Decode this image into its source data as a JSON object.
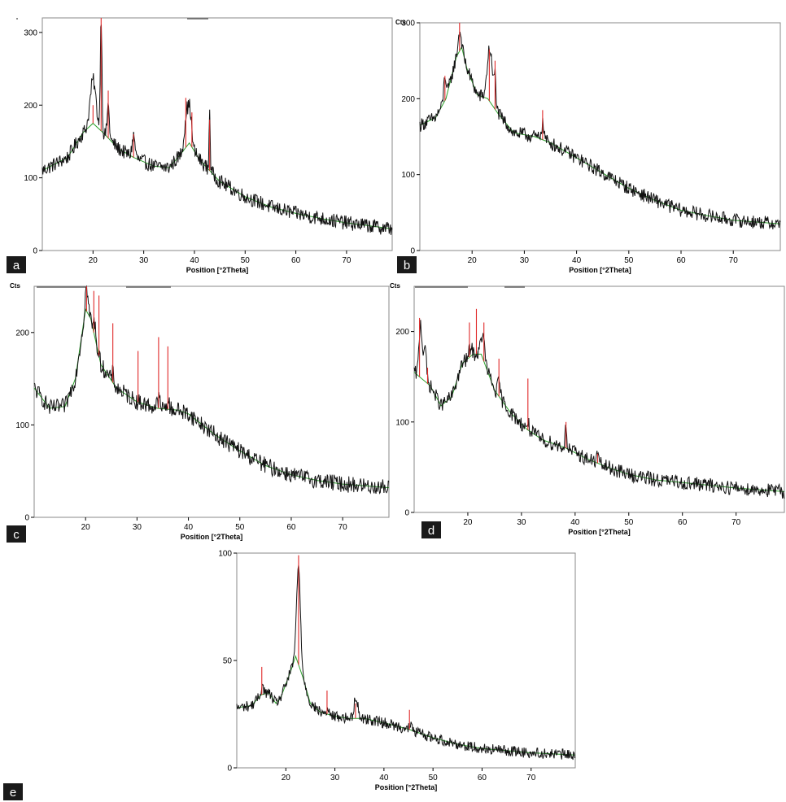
{
  "figure": {
    "panel_labels": [
      "a",
      "b",
      "c",
      "d",
      "e"
    ]
  },
  "colors": {
    "measured": "#111111",
    "background": "#2aa02a",
    "reference_sticks": "#e02828"
  },
  "chart_data": [
    {
      "panel": "a",
      "type": "line",
      "xlabel": "Position [°2Theta]",
      "ylabel": "",
      "corner_text": "",
      "xlim": [
        10,
        79
      ],
      "ylim": [
        0,
        320
      ],
      "xticks": [
        20,
        30,
        40,
        50,
        60,
        70
      ],
      "yticks": [
        0,
        100,
        200,
        300
      ],
      "grid": false,
      "baseline": [
        [
          10,
          110
        ],
        [
          15,
          128
        ],
        [
          18,
          162
        ],
        [
          20,
          175
        ],
        [
          22,
          162
        ],
        [
          25,
          140
        ],
        [
          28,
          128
        ],
        [
          32,
          116
        ],
        [
          35,
          114
        ],
        [
          37,
          130
        ],
        [
          39,
          148
        ],
        [
          41,
          125
        ],
        [
          45,
          95
        ],
        [
          50,
          74
        ],
        [
          55,
          60
        ],
        [
          60,
          51
        ],
        [
          65,
          44
        ],
        [
          70,
          38
        ],
        [
          79,
          30
        ]
      ],
      "peaks": [
        [
          20,
          60,
          0.8
        ],
        [
          21.6,
          160,
          0.22
        ],
        [
          23,
          45,
          0.3
        ],
        [
          28,
          30,
          0.4
        ],
        [
          38.5,
          50,
          0.6
        ],
        [
          39.2,
          35,
          0.4
        ],
        [
          43,
          90,
          0.15
        ]
      ],
      "noise": 10,
      "sticks": [
        [
          20,
          200
        ],
        [
          21.6,
          320
        ],
        [
          23,
          220
        ],
        [
          28,
          160
        ],
        [
          38.3,
          210
        ],
        [
          39.5,
          190
        ],
        [
          43,
          180
        ]
      ]
    },
    {
      "panel": "b",
      "type": "line",
      "xlabel": "Position [°2Theta]",
      "ylabel": "",
      "corner_text": "Cts",
      "xlim": [
        10,
        79
      ],
      "ylim": [
        0,
        300
      ],
      "xticks": [
        20,
        30,
        40,
        50,
        60,
        70
      ],
      "yticks": [
        0,
        100,
        200,
        300
      ],
      "grid": false,
      "baseline": [
        [
          10,
          165
        ],
        [
          13,
          175
        ],
        [
          15,
          200
        ],
        [
          17,
          255
        ],
        [
          18,
          268
        ],
        [
          19,
          240
        ],
        [
          21,
          205
        ],
        [
          23,
          200
        ],
        [
          25,
          180
        ],
        [
          28,
          155
        ],
        [
          32,
          150
        ],
        [
          35,
          142
        ],
        [
          40,
          122
        ],
        [
          45,
          102
        ],
        [
          50,
          82
        ],
        [
          55,
          66
        ],
        [
          60,
          53
        ],
        [
          65,
          46
        ],
        [
          70,
          40
        ],
        [
          79,
          35
        ]
      ],
      "peaks": [
        [
          14.8,
          35,
          0.3
        ],
        [
          17.6,
          25,
          0.4
        ],
        [
          23.4,
          70,
          0.7
        ],
        [
          24.4,
          40,
          0.25
        ],
        [
          33.5,
          20,
          0.4
        ]
      ],
      "noise": 9,
      "sticks": [
        [
          14.8,
          230
        ],
        [
          17.6,
          300
        ],
        [
          23.3,
          265
        ],
        [
          24.4,
          250
        ],
        [
          33.5,
          185
        ]
      ]
    },
    {
      "panel": "c",
      "type": "line",
      "xlabel": "Position [°2Theta]",
      "ylabel": "",
      "corner_text": "Cts",
      "xlim": [
        10,
        79
      ],
      "ylim": [
        0,
        250
      ],
      "xticks": [
        20,
        30,
        40,
        50,
        60,
        70
      ],
      "yticks": [
        0,
        100,
        200
      ],
      "grid": false,
      "baseline": [
        [
          10,
          140
        ],
        [
          13,
          118
        ],
        [
          16,
          120
        ],
        [
          18,
          150
        ],
        [
          20,
          225
        ],
        [
          21,
          215
        ],
        [
          23,
          165
        ],
        [
          26,
          140
        ],
        [
          30,
          125
        ],
        [
          34,
          118
        ],
        [
          38,
          116
        ],
        [
          40,
          112
        ],
        [
          45,
          90
        ],
        [
          50,
          72
        ],
        [
          55,
          56
        ],
        [
          60,
          46
        ],
        [
          65,
          40
        ],
        [
          70,
          36
        ],
        [
          79,
          32
        ]
      ],
      "peaks": [
        [
          20.2,
          25,
          0.4
        ],
        [
          21.8,
          15,
          0.3
        ],
        [
          25.3,
          10,
          0.3
        ],
        [
          34.2,
          10,
          0.4
        ],
        [
          36,
          8,
          0.4
        ]
      ],
      "noise": 9,
      "sticks": [
        [
          20.2,
          250
        ],
        [
          21.6,
          245
        ],
        [
          22.6,
          240
        ],
        [
          25.3,
          210
        ],
        [
          30.2,
          180
        ],
        [
          34.2,
          195
        ],
        [
          36,
          185
        ]
      ]
    },
    {
      "panel": "d",
      "type": "line",
      "xlabel": "Position [°2Theta]",
      "ylabel": "",
      "corner_text": "Cts",
      "xlim": [
        10,
        79
      ],
      "ylim": [
        0,
        250
      ],
      "xticks": [
        20,
        30,
        40,
        50,
        60,
        70
      ],
      "yticks": [
        0,
        100,
        200
      ],
      "grid": false,
      "baseline": [
        [
          10,
          155
        ],
        [
          11,
          150
        ],
        [
          13,
          140
        ],
        [
          15,
          118
        ],
        [
          17,
          128
        ],
        [
          19,
          165
        ],
        [
          21,
          175
        ],
        [
          22.5,
          175
        ],
        [
          25,
          135
        ],
        [
          28,
          110
        ],
        [
          31,
          92
        ],
        [
          34,
          80
        ],
        [
          38,
          72
        ],
        [
          42,
          60
        ],
        [
          46,
          50
        ],
        [
          50,
          42
        ],
        [
          55,
          36
        ],
        [
          60,
          33
        ],
        [
          65,
          30
        ],
        [
          70,
          27
        ],
        [
          79,
          23
        ]
      ],
      "peaks": [
        [
          11.2,
          60,
          0.4
        ],
        [
          12,
          40,
          0.35
        ],
        [
          20.5,
          10,
          0.4
        ],
        [
          22.8,
          25,
          0.5
        ],
        [
          25.8,
          15,
          0.35
        ],
        [
          31.2,
          8,
          0.3
        ],
        [
          38.3,
          30,
          0.2
        ],
        [
          44.2,
          10,
          0.3
        ]
      ],
      "noise": 8,
      "sticks": [
        [
          11,
          215
        ],
        [
          12.5,
          160
        ],
        [
          20.3,
          210
        ],
        [
          21.6,
          225
        ],
        [
          23,
          210
        ],
        [
          25.8,
          170
        ],
        [
          31.2,
          148
        ],
        [
          38.3,
          100
        ],
        [
          44.2,
          65
        ]
      ]
    },
    {
      "panel": "e",
      "type": "line",
      "xlabel": "Position [°2Theta]",
      "ylabel": "",
      "corner_text": "",
      "xlim": [
        10,
        79
      ],
      "ylim": [
        0,
        100
      ],
      "xticks": [
        20,
        30,
        40,
        50,
        60,
        70
      ],
      "yticks": [
        0,
        50,
        100
      ],
      "grid": false,
      "baseline": [
        [
          10,
          28
        ],
        [
          13,
          29
        ],
        [
          15,
          34
        ],
        [
          16.5,
          35
        ],
        [
          18,
          30
        ],
        [
          19,
          33
        ],
        [
          21,
          45
        ],
        [
          22,
          52
        ],
        [
          23.5,
          42
        ],
        [
          25,
          30
        ],
        [
          27,
          26
        ],
        [
          30,
          24
        ],
        [
          33,
          23
        ],
        [
          36,
          23
        ],
        [
          40,
          21
        ],
        [
          45,
          18
        ],
        [
          50,
          14
        ],
        [
          55,
          11
        ],
        [
          60,
          9
        ],
        [
          65,
          8
        ],
        [
          70,
          7
        ],
        [
          79,
          6
        ]
      ],
      "peaks": [
        [
          15.2,
          4,
          0.4
        ],
        [
          22.6,
          45,
          0.55
        ],
        [
          28.5,
          2,
          0.3
        ],
        [
          34.3,
          10,
          0.55
        ],
        [
          45.5,
          2,
          0.4
        ]
      ],
      "noise": 2.5,
      "sticks": [
        [
          15.1,
          47
        ],
        [
          22.6,
          99
        ],
        [
          28.4,
          36
        ],
        [
          34.2,
          30
        ],
        [
          45.2,
          27
        ]
      ]
    }
  ]
}
